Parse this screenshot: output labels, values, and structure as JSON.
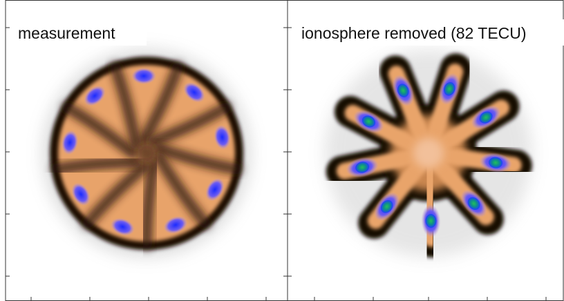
{
  "panels": [
    {
      "label": "measurement"
    },
    {
      "label": "ionosphere removed (82 TECU)"
    }
  ]
}
